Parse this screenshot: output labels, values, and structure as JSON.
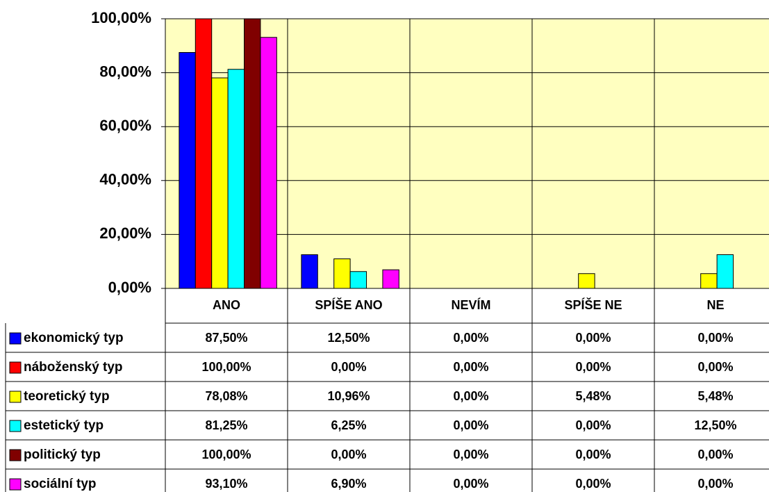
{
  "chart_data": {
    "type": "bar",
    "categories": [
      "ANO",
      "SPÍŠE ANO",
      "NEVÍM",
      "SPÍŠE NE",
      "NE"
    ],
    "series": [
      {
        "name": "ekonomický typ",
        "color": "#0000ff",
        "values": [
          87.5,
          12.5,
          0,
          0,
          0
        ],
        "value_labels": [
          "87,50%",
          "12,50%",
          "0,00%",
          "0,00%",
          "0,00%"
        ]
      },
      {
        "name": "náboženský typ",
        "color": "#ff0000",
        "values": [
          100,
          0,
          0,
          0,
          0
        ],
        "value_labels": [
          "100,00%",
          "0,00%",
          "0,00%",
          "0,00%",
          "0,00%"
        ]
      },
      {
        "name": "teoretický typ",
        "color": "#ffff00",
        "values": [
          78.08,
          10.96,
          0,
          5.48,
          5.48
        ],
        "value_labels": [
          "78,08%",
          "10,96%",
          "0,00%",
          "5,48%",
          "5,48%"
        ]
      },
      {
        "name": "estetický typ",
        "color": "#00ffff",
        "values": [
          81.25,
          6.25,
          0,
          0,
          12.5
        ],
        "value_labels": [
          "81,25%",
          "6,25%",
          "0,00%",
          "0,00%",
          "12,50%"
        ]
      },
      {
        "name": "politický typ",
        "color": "#800000",
        "values": [
          100,
          0,
          0,
          0,
          0
        ],
        "value_labels": [
          "100,00%",
          "0,00%",
          "0,00%",
          "0,00%",
          "0,00%"
        ]
      },
      {
        "name": "sociální typ",
        "color": "#ff00ff",
        "values": [
          93.1,
          6.9,
          0,
          0,
          0
        ],
        "value_labels": [
          "93,10%",
          "6,90%",
          "0,00%",
          "0,00%",
          "0,00%"
        ]
      }
    ],
    "ylim": [
      0,
      100
    ],
    "yticks": [
      {
        "value": 0,
        "label": "0,00%"
      },
      {
        "value": 20,
        "label": "20,00%"
      },
      {
        "value": 40,
        "label": "40,00%"
      },
      {
        "value": 60,
        "label": "60,00%"
      },
      {
        "value": 80,
        "label": "80,00%"
      },
      {
        "value": 100,
        "label": "100,00%"
      }
    ],
    "grid": true,
    "background": "#ffffc0"
  }
}
